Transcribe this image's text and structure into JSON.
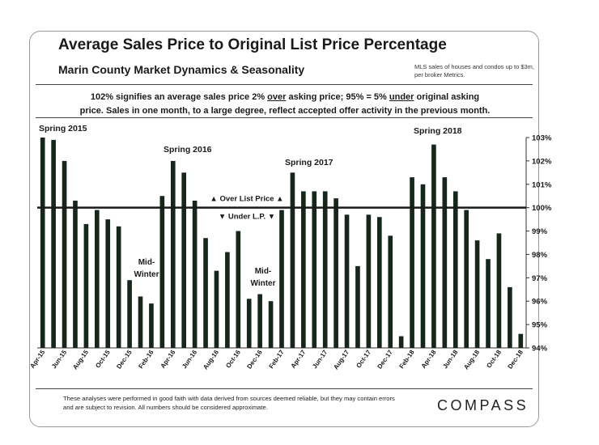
{
  "header": {
    "title": "Average Sales Price to Original List Price Percentage",
    "subtitle": "Marin County Market Dynamics & Seasonality",
    "source_note": "MLS sales of houses and condos up to $3m, per broker Metrics."
  },
  "note": {
    "line1_a": "102% signifies an average sales price 2% ",
    "line1_over": "over",
    "line1_b": " asking price; 95% = 5% ",
    "line1_under": "under",
    "line1_c": " original asking",
    "line2": "price. Sales in one month, to a large degree, reflect accepted offer activity in the previous month."
  },
  "chart_data": {
    "type": "bar",
    "categories": [
      "Apr-15",
      "May-15",
      "Jun-15",
      "Jul-15",
      "Aug-15",
      "Sep-15",
      "Oct-15",
      "Nov-15",
      "Dec-15",
      "Jan-16",
      "Feb-16",
      "Mar-16",
      "Apr-16",
      "May-16",
      "Jun-16",
      "Jul-16",
      "Aug-16",
      "Sep-16",
      "Oct-16",
      "Nov-16",
      "Dec-16",
      "Jan-17",
      "Feb-17",
      "Mar-17",
      "Apr-17",
      "May-17",
      "Jun-17",
      "Jul-17",
      "Aug-17",
      "Sep-17",
      "Oct-17",
      "Nov-17",
      "Dec-17",
      "Jan-18",
      "Feb-18",
      "Mar-18",
      "Apr-18",
      "May-18",
      "Jun-18",
      "Jul-18",
      "Aug-18",
      "Sep-18",
      "Oct-18",
      "Nov-18",
      "Dec-18"
    ],
    "tick_labels": [
      "Apr-15",
      "",
      "Jun-15",
      "",
      "Aug-15",
      "",
      "Oct-15",
      "",
      "Dec-15",
      "",
      "Feb-16",
      "",
      "Apr-16",
      "",
      "Jun-16",
      "",
      "Aug-16",
      "",
      "Oct-16",
      "",
      "Dec-16",
      "",
      "Feb-17",
      "",
      "Apr-17",
      "",
      "Jun-17",
      "",
      "Aug-17",
      "",
      "Oct-17",
      "",
      "Dec-17",
      "",
      "Feb-18",
      "",
      "Apr-18",
      "",
      "Jun-18",
      "",
      "Aug-18",
      "",
      "Oct-18",
      "",
      "Dec-18"
    ],
    "values": [
      103.0,
      102.9,
      102.0,
      100.3,
      99.3,
      99.9,
      99.5,
      99.2,
      96.9,
      96.2,
      95.9,
      100.5,
      102.0,
      101.5,
      100.3,
      98.7,
      97.3,
      98.1,
      99.0,
      96.1,
      96.3,
      96.0,
      99.9,
      101.5,
      100.7,
      100.7,
      100.7,
      100.4,
      99.7,
      97.5,
      99.7,
      99.6,
      98.8,
      94.5,
      101.3,
      101.0,
      102.7,
      101.3,
      100.7,
      99.9,
      98.6,
      97.8,
      98.9,
      96.6,
      94.6
    ],
    "ylim": [
      94,
      103
    ],
    "y_ticks": [
      "94%",
      "95%",
      "96%",
      "97%",
      "98%",
      "99%",
      "100%",
      "101%",
      "102%",
      "103%"
    ],
    "reference_line": 100,
    "axis_side": "right",
    "annotations": {
      "spring_2015": "Spring 2015",
      "spring_2016": "Spring 2016",
      "spring_2017": "Spring 2017",
      "spring_2018": "Spring 2018",
      "mid_winter_1a": "Mid-",
      "mid_winter_1b": "Winter",
      "mid_winter_2a": "Mid-",
      "mid_winter_2b": "Winter",
      "over_list": "▲ Over List Price ▲",
      "under_list": "▼ Under L.P. ▼"
    },
    "colors": {
      "bar": "#17261b",
      "line": "#1a1a1a",
      "text": "#1a1a1a"
    }
  },
  "footer": {
    "disclaimer": "These analyses were performed in good faith with data derived from sources deemed reliable, but they may contain errors and are subject to revision. All numbers should be considered approximate.",
    "logo": "COMPASS"
  }
}
